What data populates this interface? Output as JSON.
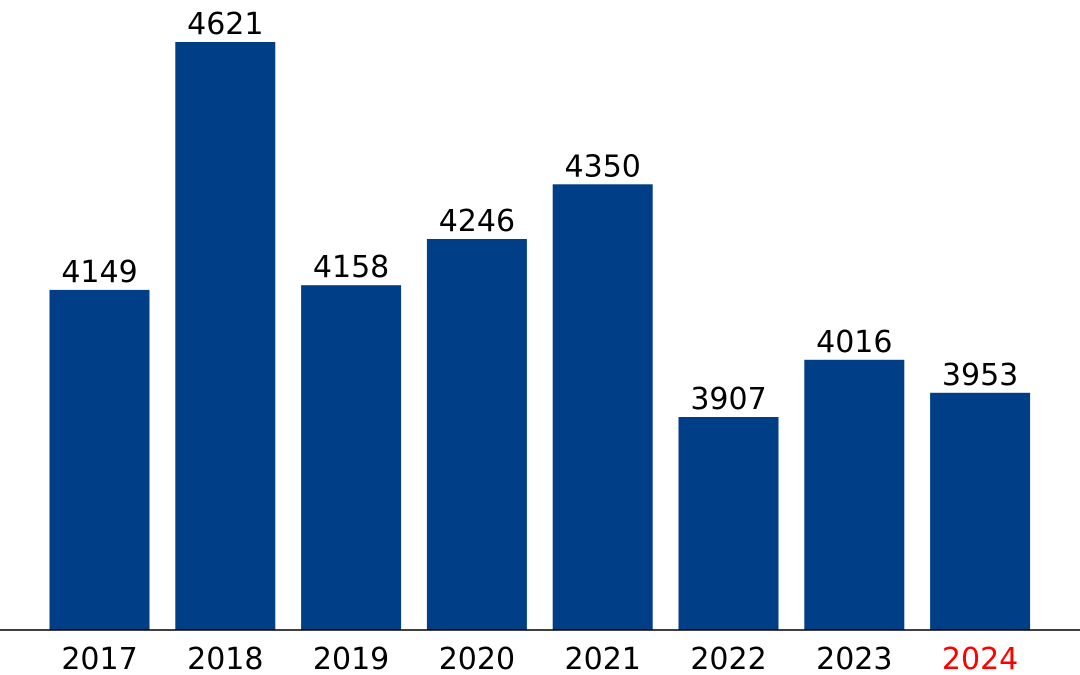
{
  "chart_data": {
    "type": "bar",
    "title": "",
    "xlabel": "",
    "ylabel": "",
    "categories": [
      "2017",
      "2018",
      "2019",
      "2020",
      "2021",
      "2022",
      "2023",
      "2024"
    ],
    "values": [
      4149,
      4621,
      4158,
      4246,
      4350,
      3907,
      4016,
      3953
    ],
    "data_labels": [
      "4149",
      "4621",
      "4158",
      "4246",
      "4350",
      "3907",
      "4016",
      "3953"
    ],
    "grid": false,
    "legend": "none",
    "colors": {
      "bar": "#003f88",
      "label": "#000000",
      "highlight_tick": "#ff0000",
      "axis": "#000000"
    },
    "highlight_category": "2024"
  }
}
